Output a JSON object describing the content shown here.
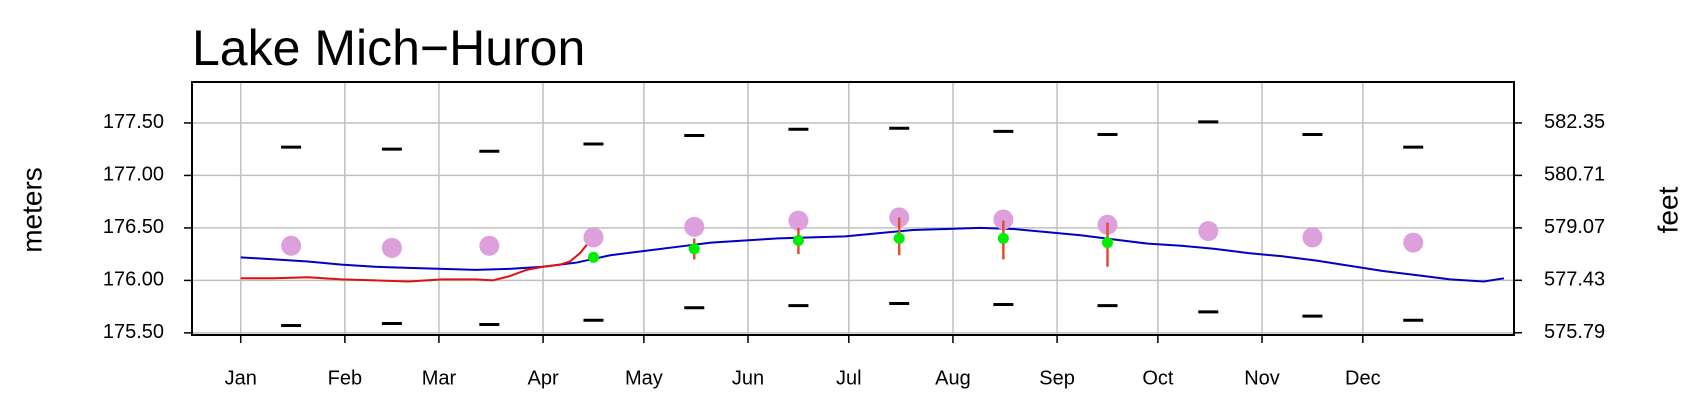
{
  "chart_data": {
    "type": "line",
    "title": "Lake Mich−Huron",
    "y_label": "meters",
    "y2_label": "feet",
    "xlim": [
      -14.5,
      379
    ],
    "xticks": [
      {
        "value": 0,
        "label": "Jan"
      },
      {
        "value": 31,
        "label": "Feb"
      },
      {
        "value": 59,
        "label": "Mar"
      },
      {
        "value": 90,
        "label": "Apr"
      },
      {
        "value": 120,
        "label": "May"
      },
      {
        "value": 151,
        "label": "Jun"
      },
      {
        "value": 181,
        "label": "Jul"
      },
      {
        "value": 212,
        "label": "Aug"
      },
      {
        "value": 243,
        "label": "Sep"
      },
      {
        "value": 273,
        "label": "Oct"
      },
      {
        "value": 304,
        "label": "Nov"
      },
      {
        "value": 334,
        "label": "Dec"
      }
    ],
    "ylim": [
      175.48,
      177.89
    ],
    "yticks": [
      {
        "value": 175.5,
        "label": "175.50"
      },
      {
        "value": 176,
        "label": "176.00"
      },
      {
        "value": 176.5,
        "label": "176.50"
      },
      {
        "value": 177,
        "label": "177.00"
      },
      {
        "value": 177.5,
        "label": "177.50"
      }
    ],
    "y2lim": [
      575.72,
      583.63
    ],
    "y2ticks": [
      575.79,
      577.43,
      579.07,
      580.71,
      582.35
    ],
    "grid": true,
    "series": [
      {
        "mark": "line",
        "color": "#0000c8",
        "x": [
          0,
          10,
          20,
          30,
          40,
          50,
          60,
          70,
          80,
          90,
          100,
          110,
          120,
          130,
          140,
          150,
          160,
          170,
          180,
          190,
          200,
          210,
          220,
          230,
          240,
          250,
          260,
          270,
          280,
          290,
          300,
          310,
          320,
          330,
          340,
          350,
          360,
          370,
          376
        ],
        "values": [
          176.22,
          176.2,
          176.18,
          176.15,
          176.13,
          176.12,
          176.11,
          176.1,
          176.11,
          176.13,
          176.17,
          176.24,
          176.28,
          176.32,
          176.36,
          176.38,
          176.4,
          176.41,
          176.42,
          176.45,
          176.48,
          176.49,
          176.5,
          176.49,
          176.46,
          176.43,
          176.39,
          176.35,
          176.33,
          176.3,
          176.26,
          176.23,
          176.19,
          176.14,
          176.09,
          176.05,
          176.01,
          175.99,
          176.02
        ]
      },
      {
        "mark": "line",
        "color": "#e01010",
        "x": [
          0,
          10,
          20,
          30,
          40,
          50,
          60,
          70,
          75,
          80,
          85,
          90,
          95,
          98,
          101,
          103
        ],
        "values": [
          176.02,
          176.02,
          176.03,
          176.01,
          176.0,
          175.99,
          176.01,
          176.01,
          176.0,
          176.04,
          176.1,
          176.13,
          176.15,
          176.18,
          176.26,
          176.34
        ]
      },
      {
        "mark": "dash",
        "color": "#000000",
        "x": [
          15,
          45,
          74,
          105,
          135,
          166,
          196,
          227,
          258,
          288,
          319,
          349
        ],
        "values": [
          177.27,
          177.25,
          177.23,
          177.3,
          177.38,
          177.44,
          177.45,
          177.42,
          177.39,
          177.51,
          177.39,
          177.27
        ]
      },
      {
        "mark": "dash",
        "color": "#000000",
        "x": [
          15,
          45,
          74,
          105,
          135,
          166,
          196,
          227,
          258,
          288,
          319,
          349
        ],
        "values": [
          175.57,
          175.59,
          175.58,
          175.62,
          175.74,
          175.76,
          175.78,
          175.77,
          175.76,
          175.7,
          175.66,
          175.62
        ]
      },
      {
        "mark": "circle",
        "color": "#dda0dd",
        "x": [
          15,
          45,
          74,
          105,
          135,
          166,
          196,
          227,
          258,
          288,
          319,
          349
        ],
        "values": [
          176.33,
          176.31,
          176.33,
          176.41,
          176.51,
          176.57,
          176.6,
          176.58,
          176.53,
          176.47,
          176.41,
          176.36
        ]
      },
      {
        "mark": "point",
        "color": "#00ee00",
        "range_color": "#e05030",
        "x": [
          105,
          135,
          166,
          196,
          227,
          258
        ],
        "values": [
          176.22,
          176.3,
          176.38,
          176.4,
          176.4,
          176.36
        ],
        "range": [
          [
            176.21,
            176.26
          ],
          [
            176.2,
            176.4
          ],
          [
            176.25,
            176.5
          ],
          [
            176.24,
            176.6
          ],
          [
            176.2,
            176.57
          ],
          [
            176.13,
            176.55
          ]
        ]
      }
    ]
  }
}
